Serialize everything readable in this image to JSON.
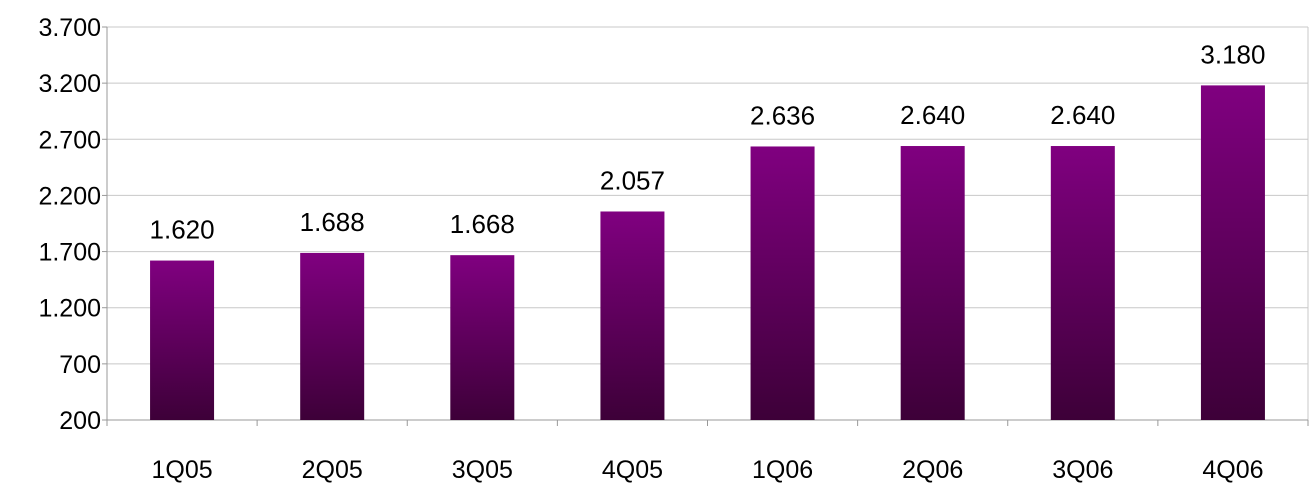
{
  "chart_data": {
    "type": "bar",
    "categories": [
      "1Q05",
      "2Q05",
      "3Q05",
      "4Q05",
      "1Q06",
      "2Q06",
      "3Q06",
      "4Q06"
    ],
    "values": [
      1620,
      1688,
      1668,
      2057,
      2636,
      2640,
      2640,
      3180
    ],
    "data_labels": [
      "1.620",
      "1.688",
      "1.668",
      "2.057",
      "2.636",
      "2.640",
      "2.640",
      "3.180"
    ],
    "yticks": [
      200,
      700,
      1200,
      1700,
      2200,
      2700,
      3200,
      3700
    ],
    "ytick_labels": [
      "200",
      "700",
      "1.200",
      "1.700",
      "2.200",
      "2.700",
      "3.200",
      "3.700"
    ],
    "ylim": [
      200,
      3700
    ],
    "title": "",
    "xlabel": "",
    "ylabel": "",
    "grid": true,
    "legend": "none",
    "colors": {
      "bar_top": "#800080",
      "bar_bottom": "#3d0038",
      "grid": "#c8c8c8",
      "axis": "#999999"
    }
  }
}
